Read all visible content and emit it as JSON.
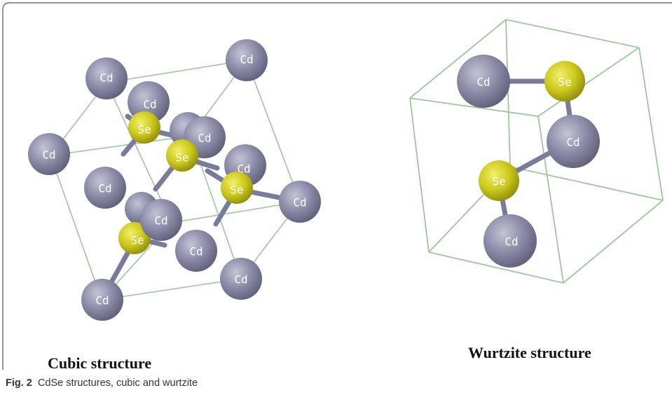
{
  "atoms": {
    "cd": "Cd",
    "se": "Se"
  },
  "titles": {
    "cubic": "Cubic structure",
    "wurtzite": "Wurtzite structure"
  },
  "caption": {
    "label": "Fig. 2",
    "text": "CdSe structures, cubic and wurtzite"
  },
  "colors": {
    "cd_atom": "#8a8aa6",
    "se_atom": "#c9c61a",
    "cell_edge": "#9cc79a",
    "bond": "#7a7a9c"
  }
}
